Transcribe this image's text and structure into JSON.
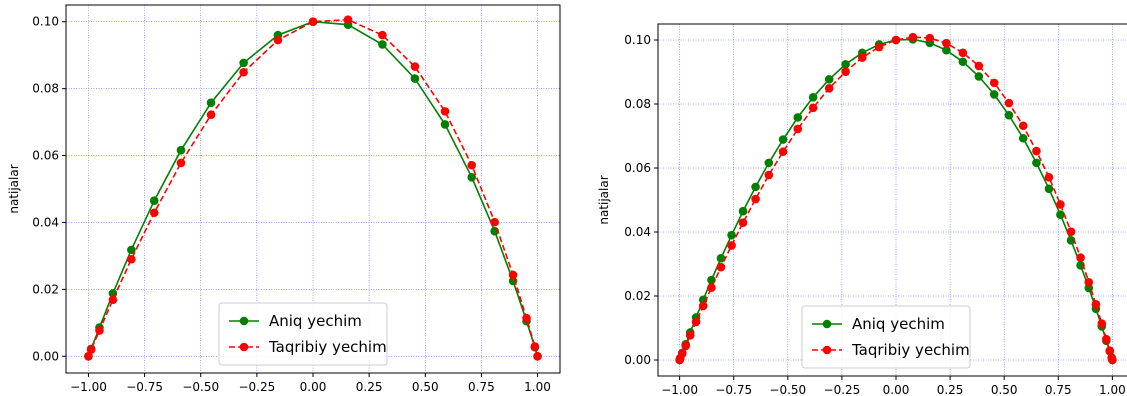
{
  "chart_data": [
    {
      "type": "line",
      "ylabel": "natijalar",
      "grid": true,
      "legend": "lower center",
      "x": [
        -1,
        -0.988,
        -0.951,
        -0.891,
        -0.809,
        -0.707,
        -0.588,
        -0.454,
        -0.309,
        -0.156,
        0,
        0.156,
        0.309,
        0.454,
        0.588,
        0.707,
        0.809,
        0.891,
        0.951,
        0.988,
        1
      ],
      "series": [
        {
          "name": "Aniq yechim",
          "color": "#008000",
          "style": "solid",
          "values": [
            0,
            0.0022,
            0.0086,
            0.0188,
            0.0318,
            0.0465,
            0.0616,
            0.0758,
            0.0877,
            0.096,
            0.1,
            0.0991,
            0.0932,
            0.083,
            0.0693,
            0.0535,
            0.0374,
            0.0225,
            0.0105,
            0.0027,
            0
          ]
        },
        {
          "name": "Taqribiy yechim",
          "color": "#ff0000",
          "style": "dashed",
          "values": [
            0,
            0.002,
            0.0077,
            0.0169,
            0.029,
            0.0429,
            0.0578,
            0.0722,
            0.0849,
            0.0945,
            0.1,
            0.1006,
            0.096,
            0.0866,
            0.0732,
            0.0571,
            0.0401,
            0.0243,
            0.0114,
            0.0029,
            0
          ]
        }
      ],
      "xlim": [
        -1.1,
        1.1
      ],
      "ylim": [
        -0.005,
        0.105
      ],
      "xticks": [
        {
          "value": -1,
          "label": "−1.00"
        },
        {
          "value": -0.75,
          "label": "−0.75"
        },
        {
          "value": -0.5,
          "label": "−0.50"
        },
        {
          "value": -0.25,
          "label": "−0.25"
        },
        {
          "value": 0,
          "label": "0.00"
        },
        {
          "value": 0.25,
          "label": "0.25"
        },
        {
          "value": 0.5,
          "label": "0.50"
        },
        {
          "value": 0.75,
          "label": "0.75"
        },
        {
          "value": 1,
          "label": "1.00"
        }
      ],
      "yticks": [
        {
          "value": 0,
          "label": "0.00"
        },
        {
          "value": 0.02,
          "label": "0.02"
        },
        {
          "value": 0.04,
          "label": "0.04"
        },
        {
          "value": 0.06,
          "label": "0.06"
        },
        {
          "value": 0.08,
          "label": "0.08"
        },
        {
          "value": 0.1,
          "label": "0.10"
        }
      ]
    },
    {
      "type": "line",
      "ylabel": "natijalar",
      "grid": true,
      "legend": "lower center",
      "x": [
        -1,
        -0.997,
        -0.988,
        -0.972,
        -0.951,
        -0.924,
        -0.891,
        -0.853,
        -0.809,
        -0.76,
        -0.707,
        -0.649,
        -0.588,
        -0.522,
        -0.454,
        -0.383,
        -0.309,
        -0.233,
        -0.156,
        -0.078,
        0,
        0.078,
        0.156,
        0.233,
        0.309,
        0.383,
        0.454,
        0.522,
        0.588,
        0.649,
        0.707,
        0.76,
        0.809,
        0.853,
        0.891,
        0.924,
        0.951,
        0.972,
        0.988,
        0.997,
        1
      ],
      "series": [
        {
          "name": "Aniq yechim",
          "color": "#008000",
          "style": "solid",
          "values": [
            0,
            0.0006,
            0.0022,
            0.0049,
            0.0086,
            0.0133,
            0.0188,
            0.025,
            0.0318,
            0.039,
            0.0465,
            0.0541,
            0.0616,
            0.0689,
            0.0758,
            0.0821,
            0.0877,
            0.0924,
            0.096,
            0.0986,
            0.1,
            0.1002,
            0.0991,
            0.0968,
            0.0932,
            0.0886,
            0.083,
            0.0765,
            0.0693,
            0.0616,
            0.0535,
            0.0454,
            0.0374,
            0.0296,
            0.0225,
            0.016,
            0.0105,
            0.006,
            0.0027,
            0.0007,
            0
          ]
        },
        {
          "name": "Taqribiy yechim",
          "color": "#ff0000",
          "style": "dashed",
          "values": [
            0,
            0.0005,
            0.002,
            0.0044,
            0.0077,
            0.0119,
            0.0169,
            0.0226,
            0.029,
            0.0358,
            0.0429,
            0.0503,
            0.0578,
            0.0651,
            0.0722,
            0.0788,
            0.0849,
            0.0901,
            0.0945,
            0.0978,
            0.1,
            0.1009,
            0.1006,
            0.099,
            0.096,
            0.0919,
            0.0866,
            0.0803,
            0.0732,
            0.0653,
            0.0571,
            0.0486,
            0.0401,
            0.032,
            0.0243,
            0.0174,
            0.0114,
            0.0065,
            0.0029,
            0.0007,
            0
          ]
        }
      ],
      "xlim": [
        -1.1,
        1.1
      ],
      "ylim": [
        -0.005,
        0.105
      ],
      "xticks": [
        {
          "value": -1,
          "label": "−1.00"
        },
        {
          "value": -0.75,
          "label": "−0.75"
        },
        {
          "value": -0.5,
          "label": "−0.50"
        },
        {
          "value": -0.25,
          "label": "−0.25"
        },
        {
          "value": 0,
          "label": "0.00"
        },
        {
          "value": 0.25,
          "label": "0.25"
        },
        {
          "value": 0.5,
          "label": "0.50"
        },
        {
          "value": 0.75,
          "label": "0.75"
        },
        {
          "value": 1,
          "label": "1.00"
        }
      ],
      "yticks": [
        {
          "value": 0,
          "label": "0.00"
        },
        {
          "value": 0.02,
          "label": "0.02"
        },
        {
          "value": 0.04,
          "label": "0.04"
        },
        {
          "value": 0.06,
          "label": "0.06"
        },
        {
          "value": 0.08,
          "label": "0.08"
        },
        {
          "value": 0.1,
          "label": "0.10"
        }
      ]
    }
  ]
}
